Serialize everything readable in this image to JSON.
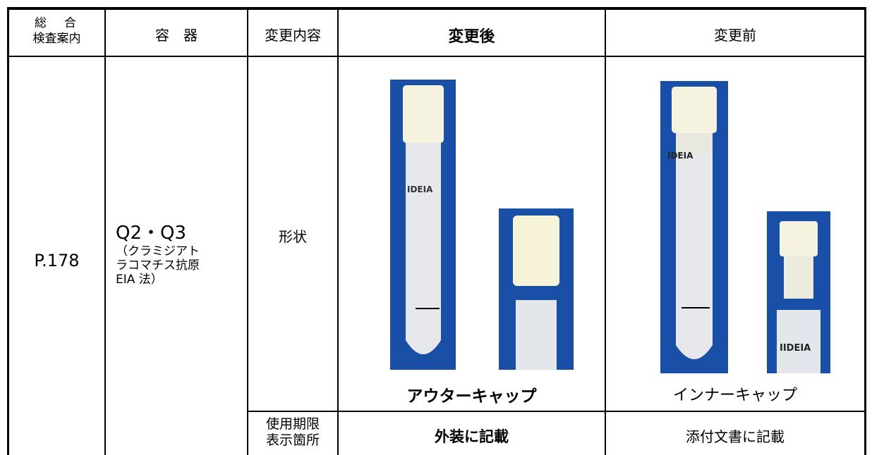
{
  "header": {
    "guide": [
      "総　合",
      "検査案内"
    ],
    "container": "容　器",
    "change": "変更内容",
    "after": "変更後",
    "before": "変更前"
  },
  "row": {
    "page": "P.178",
    "container": "Q2・Q3",
    "container_note": [
      "（クラミジアト",
      "ラコマチス抗原",
      "EIA 法）"
    ],
    "shape": {
      "label": "形状",
      "after_caption": "アウターキャップ",
      "before_caption": "インナーキャップ",
      "photo_texts": [
        "IDEIA",
        "IDEIA",
        "IIDEIA"
      ]
    },
    "expiry": {
      "label": [
        "使用期限",
        "表示箇所"
      ],
      "after": "外装に記載",
      "before": "添付文書に記載"
    }
  }
}
